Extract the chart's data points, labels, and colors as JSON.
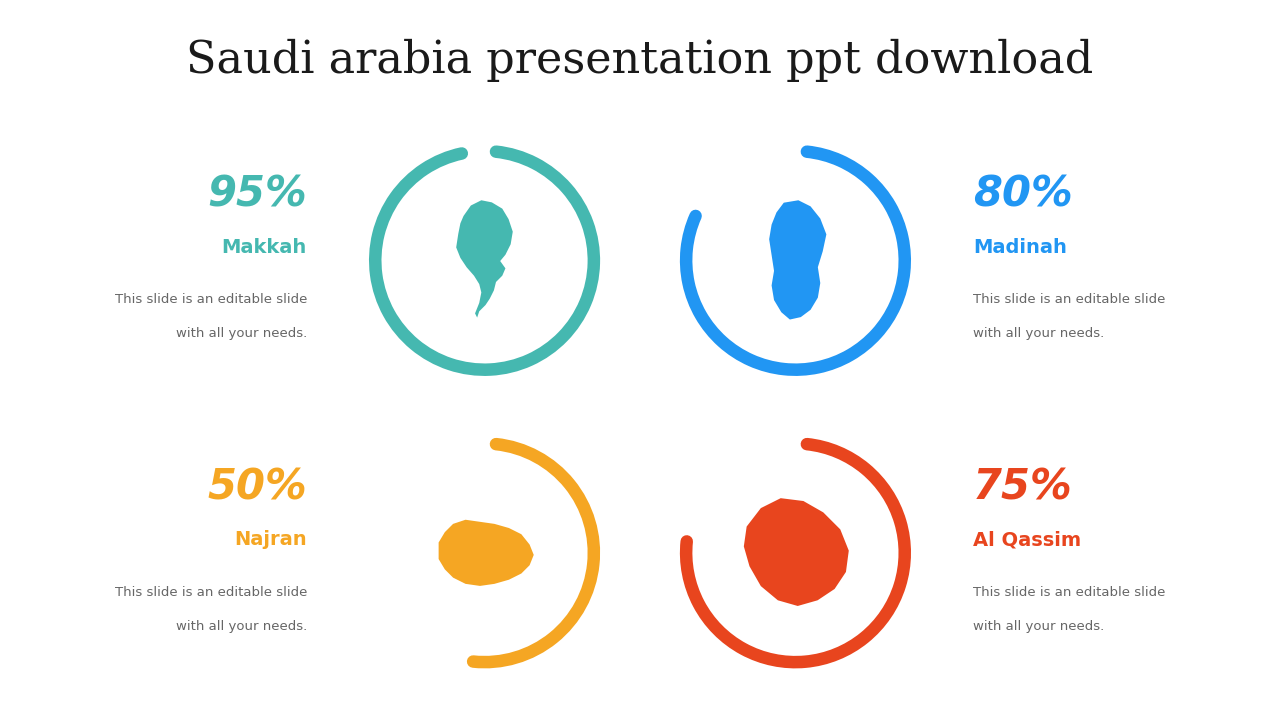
{
  "title": "Saudi arabia presentation ppt download",
  "title_fontsize": 32,
  "title_color": "#1a1a1a",
  "background_color": "#ffffff",
  "subtitle_line1": "This slide is an editable slide",
  "subtitle_line2": "with all your needs.",
  "subtitle_color": "#666666",
  "items": [
    {
      "name": "Makkah",
      "percent": 95,
      "color": "#45b8b0",
      "text_color": "#45b8b0",
      "ring_row": 0,
      "ring_col": 1,
      "text_row": 0,
      "text_col": 0,
      "text_align": "right",
      "map_shape": "makkah"
    },
    {
      "name": "Madinah",
      "percent": 80,
      "color": "#2196f3",
      "text_color": "#2196f3",
      "ring_row": 0,
      "ring_col": 2,
      "text_row": 0,
      "text_col": 3,
      "text_align": "left",
      "map_shape": "madinah"
    },
    {
      "name": "Najran",
      "percent": 50,
      "color": "#f5a623",
      "text_color": "#f5a623",
      "ring_row": 1,
      "ring_col": 1,
      "text_row": 1,
      "text_col": 0,
      "text_align": "right",
      "map_shape": "najran"
    },
    {
      "name": "Al Qassim",
      "percent": 75,
      "color": "#e8451e",
      "text_color": "#e8451e",
      "ring_row": 1,
      "ring_col": 2,
      "text_row": 1,
      "text_col": 3,
      "text_align": "left",
      "map_shape": "alqassim"
    }
  ]
}
